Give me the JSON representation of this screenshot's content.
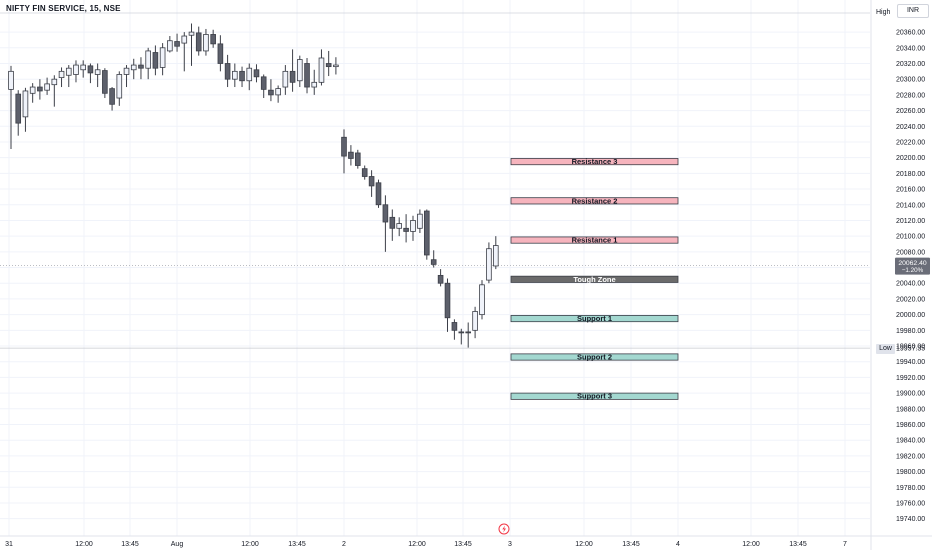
{
  "header": {
    "symbol": "NIFTY FIN SERVICE, 15, NSE",
    "currency": "INR"
  },
  "markers": {
    "high_label": "High",
    "low_label": "Low",
    "low_value": "19957.35"
  },
  "last_price": {
    "value": "20062.40",
    "change": "−1.20%"
  },
  "colors": {
    "resistance_fill": "#f6b4bd",
    "support_fill": "#a3d8d0",
    "tough_fill": "#6b6b6b",
    "candle_up": "#f0f3fa",
    "candle_down": "#5d606b",
    "wick": "#3c3f48"
  },
  "chart_data": {
    "type": "candlestick",
    "title": "NIFTY FIN SERVICE, 15, NSE",
    "ylim": [
      19734,
      20376
    ],
    "y_ticks": [
      20360,
      20340,
      20320,
      20300,
      20280,
      20260,
      20240,
      20220,
      20200,
      20180,
      20160,
      20140,
      20120,
      20100,
      20080,
      20060,
      20040,
      20020,
      20000,
      19980,
      19960,
      19940,
      19920,
      19900,
      19880,
      19860,
      19840,
      19820,
      19800,
      19780,
      19760,
      19740
    ],
    "x_ticks": [
      "31",
      "12:00",
      "13:45",
      "Aug",
      "12:00",
      "13:45",
      "2",
      "12:00",
      "13:45",
      "3",
      "12:00",
      "13:45",
      "4",
      "12:00",
      "13:45",
      "7"
    ],
    "grid": true,
    "candles": [
      {
        "o": 20287,
        "h": 20317,
        "l": 20211,
        "c": 20310
      },
      {
        "o": 20281,
        "h": 20286,
        "l": 20228,
        "c": 20244
      },
      {
        "o": 20252,
        "h": 20289,
        "l": 20233,
        "c": 20285
      },
      {
        "o": 20282,
        "h": 20295,
        "l": 20270,
        "c": 20290
      },
      {
        "o": 20290,
        "h": 20300,
        "l": 20274,
        "c": 20285
      },
      {
        "o": 20286,
        "h": 20302,
        "l": 20280,
        "c": 20294
      },
      {
        "o": 20293,
        "h": 20305,
        "l": 20265,
        "c": 20300
      },
      {
        "o": 20302,
        "h": 20315,
        "l": 20290,
        "c": 20310
      },
      {
        "o": 20305,
        "h": 20318,
        "l": 20290,
        "c": 20314
      },
      {
        "o": 20306,
        "h": 20324,
        "l": 20296,
        "c": 20318
      },
      {
        "o": 20312,
        "h": 20324,
        "l": 20302,
        "c": 20318
      },
      {
        "o": 20317,
        "h": 20320,
        "l": 20295,
        "c": 20308
      },
      {
        "o": 20306,
        "h": 20320,
        "l": 20290,
        "c": 20312
      },
      {
        "o": 20311,
        "h": 20314,
        "l": 20276,
        "c": 20282
      },
      {
        "o": 20288,
        "h": 20290,
        "l": 20260,
        "c": 20268
      },
      {
        "o": 20276,
        "h": 20310,
        "l": 20266,
        "c": 20306
      },
      {
        "o": 20306,
        "h": 20318,
        "l": 20290,
        "c": 20314
      },
      {
        "o": 20312,
        "h": 20326,
        "l": 20300,
        "c": 20318
      },
      {
        "o": 20318,
        "h": 20328,
        "l": 20300,
        "c": 20314
      },
      {
        "o": 20314,
        "h": 20340,
        "l": 20300,
        "c": 20336
      },
      {
        "o": 20334,
        "h": 20343,
        "l": 20305,
        "c": 20314
      },
      {
        "o": 20315,
        "h": 20346,
        "l": 20305,
        "c": 20340
      },
      {
        "o": 20336,
        "h": 20355,
        "l": 20334,
        "c": 20349
      },
      {
        "o": 20348,
        "h": 20358,
        "l": 20335,
        "c": 20342
      },
      {
        "o": 20346,
        "h": 20360,
        "l": 20310,
        "c": 20355
      },
      {
        "o": 20356,
        "h": 20371,
        "l": 20317,
        "c": 20360
      },
      {
        "o": 20359,
        "h": 20367,
        "l": 20330,
        "c": 20336
      },
      {
        "o": 20336,
        "h": 20364,
        "l": 20330,
        "c": 20357
      },
      {
        "o": 20357,
        "h": 20363,
        "l": 20340,
        "c": 20345
      },
      {
        "o": 20345,
        "h": 20356,
        "l": 20310,
        "c": 20320
      },
      {
        "o": 20320,
        "h": 20331,
        "l": 20290,
        "c": 20300
      },
      {
        "o": 20300,
        "h": 20320,
        "l": 20290,
        "c": 20310
      },
      {
        "o": 20310,
        "h": 20316,
        "l": 20290,
        "c": 20298
      },
      {
        "o": 20298,
        "h": 20320,
        "l": 20286,
        "c": 20314
      },
      {
        "o": 20312,
        "h": 20319,
        "l": 20296,
        "c": 20303
      },
      {
        "o": 20303,
        "h": 20306,
        "l": 20276,
        "c": 20287
      },
      {
        "o": 20286,
        "h": 20300,
        "l": 20272,
        "c": 20280
      },
      {
        "o": 20280,
        "h": 20292,
        "l": 20270,
        "c": 20288
      },
      {
        "o": 20290,
        "h": 20318,
        "l": 20280,
        "c": 20310
      },
      {
        "o": 20310,
        "h": 20338,
        "l": 20284,
        "c": 20296
      },
      {
        "o": 20298,
        "h": 20330,
        "l": 20290,
        "c": 20325
      },
      {
        "o": 20320,
        "h": 20327,
        "l": 20282,
        "c": 20290
      },
      {
        "o": 20290,
        "h": 20312,
        "l": 20280,
        "c": 20296
      },
      {
        "o": 20296,
        "h": 20338,
        "l": 20292,
        "c": 20327
      },
      {
        "o": 20320,
        "h": 20336,
        "l": 20304,
        "c": 20316
      },
      {
        "o": 20316,
        "h": 20328,
        "l": 20306,
        "c": 20318
      },
      {
        "o": 20226,
        "h": 20236,
        "l": 20180,
        "c": 20202
      },
      {
        "o": 20207,
        "h": 20216,
        "l": 20190,
        "c": 20199
      },
      {
        "o": 20206,
        "h": 20210,
        "l": 20186,
        "c": 20190
      },
      {
        "o": 20186,
        "h": 20190,
        "l": 20172,
        "c": 20176
      },
      {
        "o": 20176,
        "h": 20184,
        "l": 20150,
        "c": 20164
      },
      {
        "o": 20168,
        "h": 20172,
        "l": 20136,
        "c": 20140
      },
      {
        "o": 20140,
        "h": 20152,
        "l": 20080,
        "c": 20118
      },
      {
        "o": 20124,
        "h": 20134,
        "l": 20094,
        "c": 20110
      },
      {
        "o": 20110,
        "h": 20124,
        "l": 20100,
        "c": 20116
      },
      {
        "o": 20110,
        "h": 20128,
        "l": 20092,
        "c": 20106
      },
      {
        "o": 20106,
        "h": 20126,
        "l": 20094,
        "c": 20120
      },
      {
        "o": 20110,
        "h": 20134,
        "l": 20104,
        "c": 20128
      },
      {
        "o": 20132,
        "h": 20134,
        "l": 20070,
        "c": 20076
      },
      {
        "o": 20070,
        "h": 20082,
        "l": 20060,
        "c": 20064
      },
      {
        "o": 20050,
        "h": 20058,
        "l": 20036,
        "c": 20040
      },
      {
        "o": 20040,
        "h": 20046,
        "l": 19978,
        "c": 19996
      },
      {
        "o": 19990,
        "h": 19994,
        "l": 19968,
        "c": 19980
      },
      {
        "o": 19978,
        "h": 19982,
        "l": 19962,
        "c": 19977
      },
      {
        "o": 19978,
        "h": 19990,
        "l": 19958,
        "c": 19977
      },
      {
        "o": 19980,
        "h": 20010,
        "l": 19970,
        "c": 20004
      },
      {
        "o": 20000,
        "h": 20044,
        "l": 19994,
        "c": 20038
      },
      {
        "o": 20044,
        "h": 20092,
        "l": 20040,
        "c": 20084
      },
      {
        "o": 20062,
        "h": 20100,
        "l": 20058,
        "c": 20088
      }
    ],
    "zones": [
      {
        "label": "Resistance 3",
        "kind": "resistance",
        "top": 20199,
        "bottom": 20191
      },
      {
        "label": "Resistance 2",
        "kind": "resistance",
        "top": 20149,
        "bottom": 20141
      },
      {
        "label": "Resistance 1",
        "kind": "resistance",
        "top": 20099,
        "bottom": 20091
      },
      {
        "label": "Tough Zone",
        "kind": "tough",
        "top": 20049,
        "bottom": 20041
      },
      {
        "label": "Support 1",
        "kind": "support",
        "top": 19999,
        "bottom": 19991
      },
      {
        "label": "Support 2",
        "kind": "support",
        "top": 19950,
        "bottom": 19942
      },
      {
        "label": "Support 3",
        "kind": "support",
        "top": 19900,
        "bottom": 19892
      }
    ],
    "last_price": 20062.4,
    "low_price": 19957.35
  }
}
